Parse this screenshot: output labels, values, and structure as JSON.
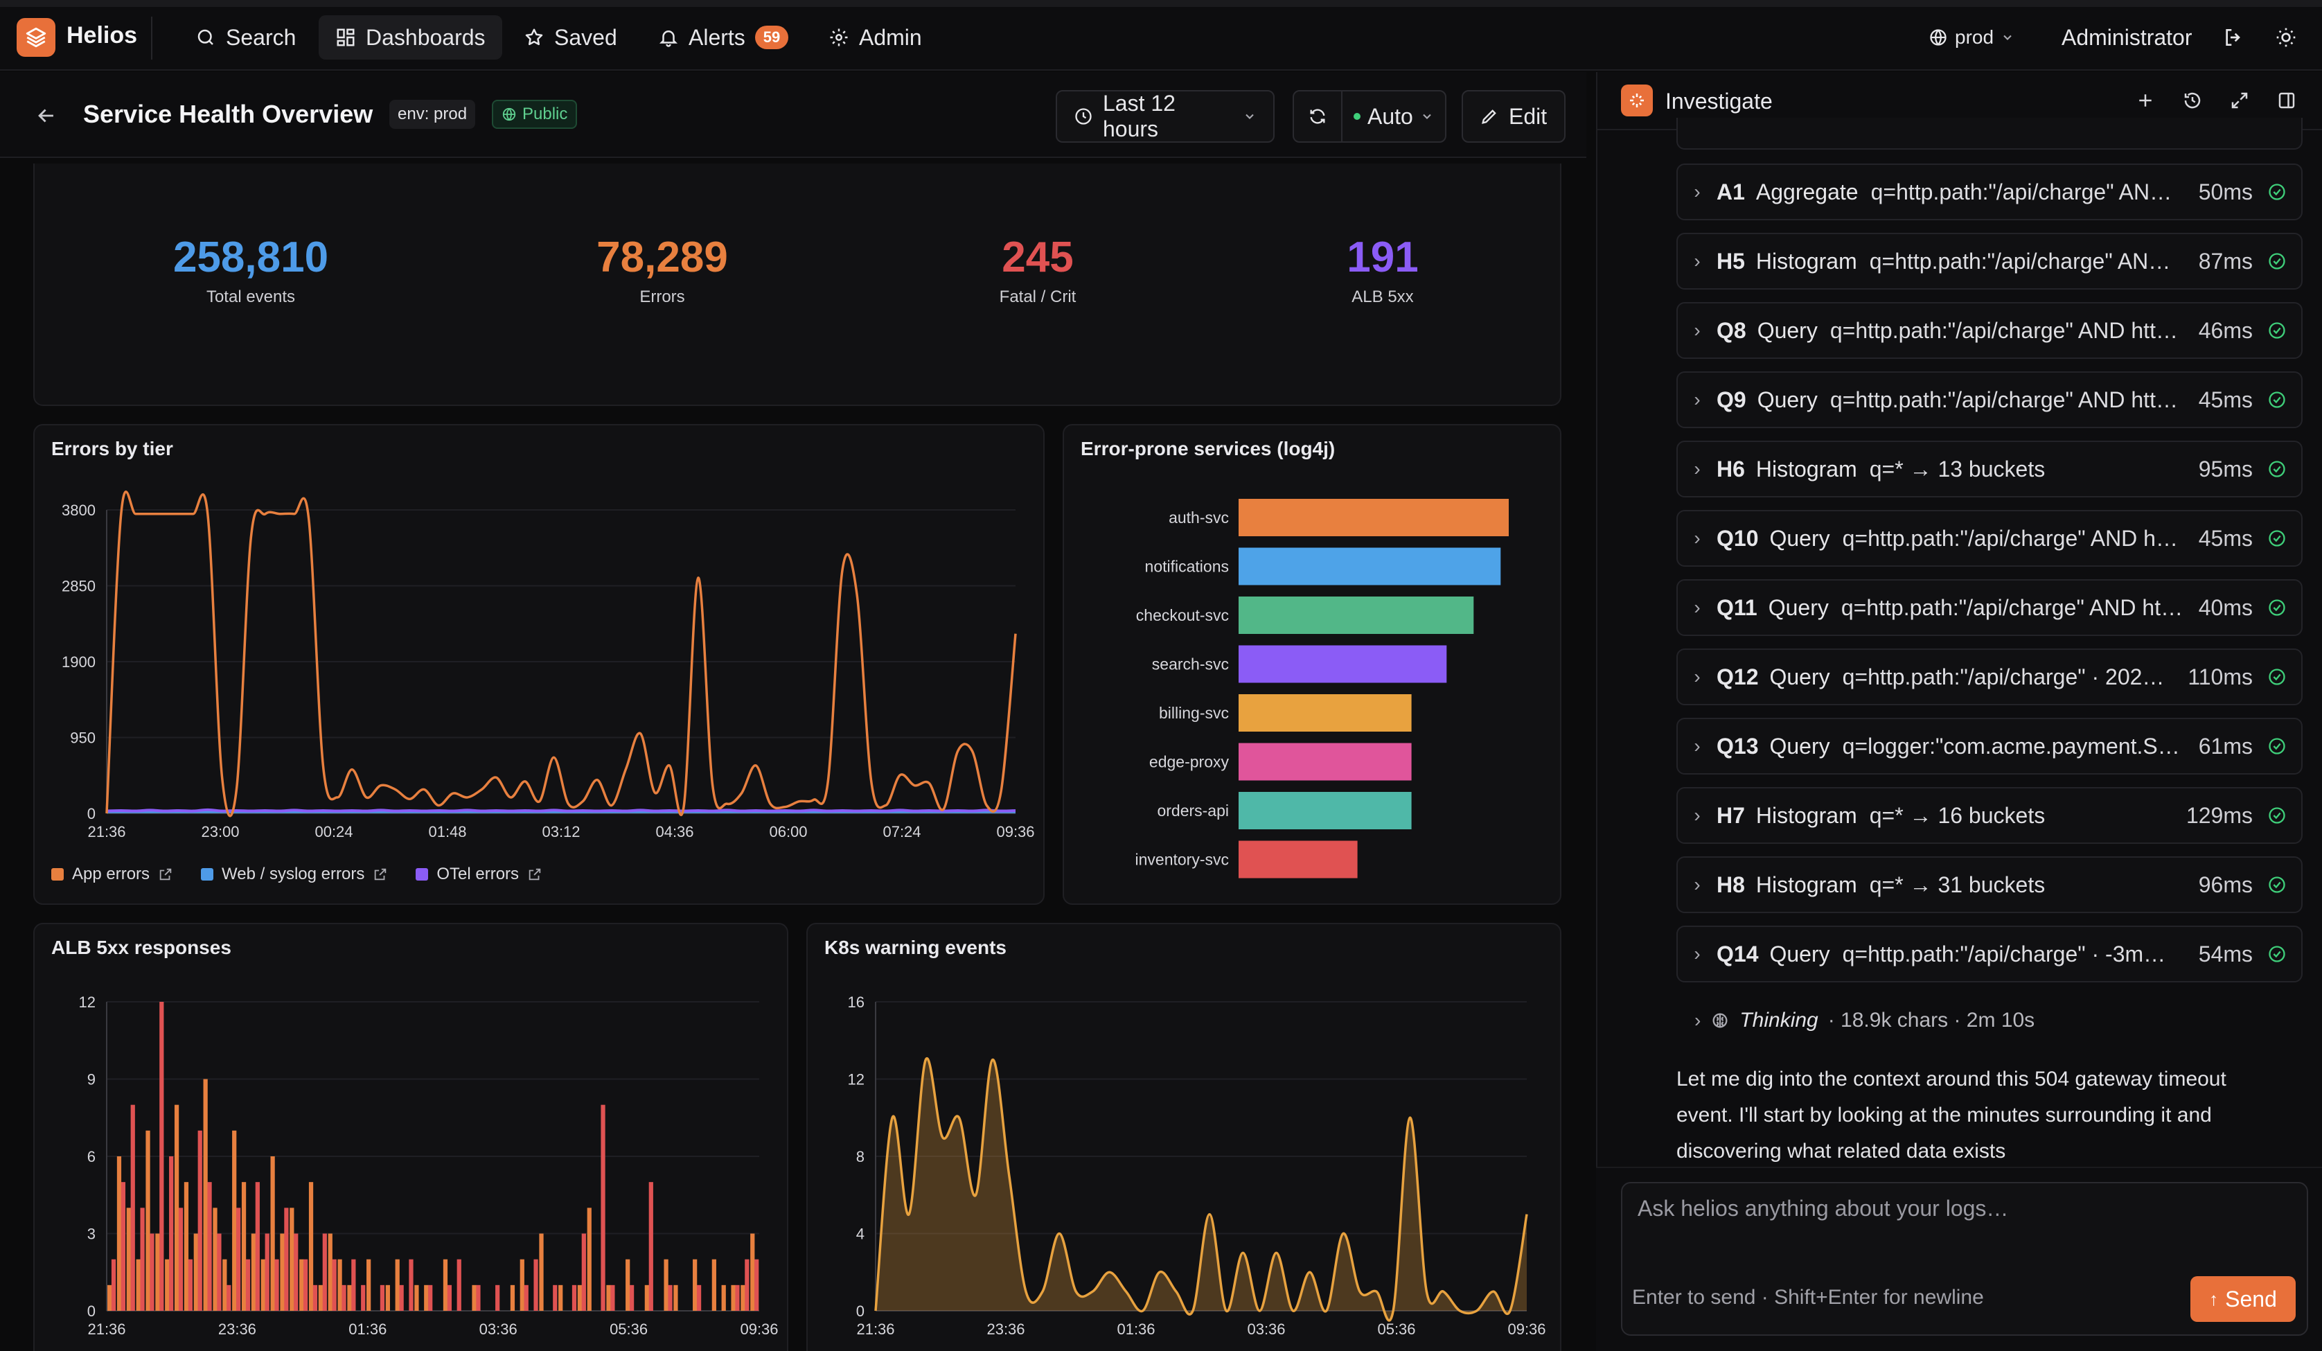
{
  "nav": {
    "brand": "Helios",
    "items": [
      {
        "label": "Search"
      },
      {
        "label": "Dashboards"
      },
      {
        "label": "Saved"
      },
      {
        "label": "Alerts",
        "badge": "59"
      },
      {
        "label": "Admin"
      }
    ],
    "env": "prod",
    "user": "Administrator"
  },
  "header": {
    "title": "Service Health Overview",
    "env_tag": "env: prod",
    "visibility": "Public",
    "time_range": "Last 12 hours",
    "refresh": "Auto",
    "edit": "Edit"
  },
  "stats": [
    {
      "value": "258,810",
      "label": "Total events",
      "color": "#4e9be8"
    },
    {
      "value": "78,289",
      "label": "Errors",
      "color": "#e8803f"
    },
    {
      "value": "245",
      "label": "Fatal / Crit",
      "color": "#e05252"
    },
    {
      "value": "191",
      "label": "ALB 5xx",
      "color": "#8b5cf6"
    }
  ],
  "panels": {
    "errors_by_tier": "Errors by tier",
    "error_prone": "Error-prone services (log4j)",
    "alb": "ALB 5xx responses",
    "k8s": "K8s warning events"
  },
  "legend": [
    {
      "label": "App errors",
      "color": "#e8803f"
    },
    {
      "label": "Web / syslog errors",
      "color": "#4e9be8"
    },
    {
      "label": "OTel errors",
      "color": "#8b5cf6"
    }
  ],
  "chart_data": [
    {
      "type": "line",
      "title": "Errors by tier",
      "x_ticks": [
        "21:36",
        "23:00",
        "00:24",
        "01:48",
        "03:12",
        "04:36",
        "06:00",
        "07:24",
        "09:36"
      ],
      "y_ticks": [
        "0",
        "950",
        "1900",
        "2850",
        "3800"
      ],
      "ylim": [
        0,
        3800
      ],
      "series": [
        {
          "name": "App errors",
          "color": "#e8803f",
          "values": [
            0,
            3750,
            3750,
            3750,
            3750,
            3750,
            3750,
            3750,
            450,
            300,
            3450,
            3750,
            3750,
            3750,
            3700,
            600,
            200,
            550,
            200,
            350,
            300,
            180,
            300,
            100,
            250,
            200,
            300,
            450,
            200,
            400,
            150,
            700,
            120,
            150,
            420,
            100,
            560,
            1000,
            260,
            600,
            80,
            2950,
            350,
            120,
            250,
            600,
            120,
            80,
            150,
            170,
            400,
            3050,
            2750,
            400,
            100,
            480,
            350,
            380,
            50,
            780,
            780,
            100,
            280,
            2250
          ]
        },
        {
          "name": "Web / syslog errors",
          "color": "#4e9be8",
          "values": [
            20,
            20,
            20,
            20,
            20,
            20,
            20,
            20,
            20,
            20,
            20,
            20,
            20,
            20,
            20,
            20,
            20,
            20,
            20,
            20,
            20,
            20,
            20,
            20,
            20,
            20,
            20,
            20,
            20,
            20,
            20,
            20,
            20,
            20,
            20,
            20,
            20,
            20,
            20,
            20,
            20,
            20,
            20,
            20,
            20,
            20,
            20,
            20,
            20,
            20,
            20,
            20,
            20,
            20,
            20,
            20,
            20,
            20,
            20,
            20,
            20,
            20,
            20,
            20
          ]
        },
        {
          "name": "OTel errors",
          "color": "#8b5cf6",
          "values": [
            30,
            35,
            30,
            40,
            30,
            35,
            30,
            45,
            30,
            35,
            30,
            35,
            30,
            40,
            30,
            35,
            30,
            35,
            30,
            40,
            30,
            35,
            30,
            35,
            30,
            40,
            30,
            35,
            30,
            35,
            30,
            40,
            30,
            35,
            30,
            35,
            30,
            40,
            30,
            35,
            30,
            35,
            30,
            40,
            30,
            35,
            30,
            35,
            30,
            40,
            30,
            35,
            30,
            35,
            30,
            40,
            30,
            35,
            30,
            35,
            30,
            40,
            30,
            35
          ]
        }
      ]
    },
    {
      "type": "bar",
      "title": "Error-prone services (log4j)",
      "categories": [
        "auth-svc",
        "notifications",
        "checkout-svc",
        "search-svc",
        "billing-svc",
        "edge-proxy",
        "orders-api",
        "inventory-svc"
      ],
      "values": [
        100,
        97,
        87,
        77,
        64,
        64,
        64,
        44
      ],
      "colors": [
        "#e8803f",
        "#4ea3e8",
        "#52b788",
        "#8b5cf6",
        "#e8a23f",
        "#e0559b",
        "#4fb8a8",
        "#e05252"
      ]
    },
    {
      "type": "bar",
      "title": "ALB 5xx responses",
      "x_ticks": [
        "21:36",
        "23:36",
        "01:36",
        "03:36",
        "05:36",
        "09:36"
      ],
      "y_ticks": [
        "0",
        "3",
        "6",
        "9",
        "12"
      ],
      "ylim": [
        0,
        12
      ],
      "series": [
        {
          "name": "orange",
          "color": "#e8803f",
          "values": [
            1,
            6,
            4,
            2,
            7,
            3,
            2,
            8,
            5,
            3,
            9,
            4,
            2,
            7,
            5,
            3,
            2,
            6,
            3,
            4,
            2,
            5,
            1,
            3,
            2,
            1,
            0,
            2,
            0,
            1,
            2,
            0,
            1,
            1,
            0,
            2,
            0,
            0,
            1,
            0,
            0,
            0,
            1,
            2,
            0,
            3,
            0,
            1,
            0,
            1,
            4,
            0,
            1,
            0,
            2,
            0,
            1,
            0,
            2,
            1,
            0,
            2,
            0,
            2,
            1,
            1,
            1,
            3
          ]
        },
        {
          "name": "red",
          "color": "#e05252",
          "values": [
            2,
            5,
            8,
            4,
            3,
            12,
            6,
            4,
            2,
            7,
            5,
            3,
            1,
            4,
            2,
            5,
            3,
            2,
            4,
            3,
            2,
            1,
            3,
            2,
            1,
            2,
            1,
            0,
            1,
            0,
            1,
            2,
            0,
            1,
            0,
            1,
            2,
            0,
            1,
            0,
            1,
            0,
            0,
            1,
            2,
            0,
            1,
            0,
            1,
            3,
            0,
            8,
            1,
            0,
            1,
            0,
            5,
            0,
            1,
            0,
            0,
            1,
            0,
            0,
            0,
            1,
            2,
            2
          ]
        }
      ]
    },
    {
      "type": "area",
      "title": "K8s warning events",
      "x_ticks": [
        "21:36",
        "23:36",
        "01:36",
        "03:36",
        "05:36",
        "09:36"
      ],
      "y_ticks": [
        "0",
        "4",
        "8",
        "12",
        "16"
      ],
      "ylim": [
        0,
        16
      ],
      "series": [
        {
          "name": "K8s warnings",
          "color": "#e8a23f",
          "values": [
            0,
            10,
            5,
            13,
            9,
            10,
            6,
            13,
            7,
            1,
            1,
            4,
            1,
            1,
            2,
            1,
            0,
            2,
            1,
            0,
            5,
            0,
            3,
            0,
            3,
            0,
            2,
            0,
            4,
            1,
            1,
            0,
            10,
            1,
            1,
            0,
            0,
            1,
            0,
            5
          ]
        }
      ]
    }
  ],
  "investigate": {
    "title": "Investigate",
    "steps": [
      {
        "id": "A1",
        "type": "Aggregate",
        "q": "q=http.path:\"/api/charge\" AN…",
        "ms": "50ms"
      },
      {
        "id": "H5",
        "type": "Histogram",
        "q": "q=http.path:\"/api/charge\" AN…",
        "ms": "87ms"
      },
      {
        "id": "Q8",
        "type": "Query",
        "q": "q=http.path:\"/api/charge\" AND htt…",
        "ms": "46ms"
      },
      {
        "id": "Q9",
        "type": "Query",
        "q": "q=http.path:\"/api/charge\" AND htt…",
        "ms": "45ms"
      },
      {
        "id": "H6",
        "type": "Histogram",
        "q": "q=* → 13 buckets",
        "ms": "95ms"
      },
      {
        "id": "Q10",
        "type": "Query",
        "q": "q=http.path:\"/api/charge\" AND h…",
        "ms": "45ms"
      },
      {
        "id": "Q11",
        "type": "Query",
        "q": "q=http.path:\"/api/charge\" AND ht…",
        "ms": "40ms"
      },
      {
        "id": "Q12",
        "type": "Query",
        "q": "q=http.path:\"/api/charge\" · 202…",
        "ms": "110ms"
      },
      {
        "id": "Q13",
        "type": "Query",
        "q": "q=logger:\"com.acme.payment.S…",
        "ms": "61ms"
      },
      {
        "id": "H7",
        "type": "Histogram",
        "q": "q=* → 16 buckets",
        "ms": "129ms"
      },
      {
        "id": "H8",
        "type": "Histogram",
        "q": "q=* → 31 buckets",
        "ms": "96ms"
      },
      {
        "id": "Q14",
        "type": "Query",
        "q": "q=http.path:\"/api/charge\" · -3m…",
        "ms": "54ms"
      }
    ],
    "thinking_label": "Thinking",
    "thinking_meta": "· 18.9k chars · 2m 10s",
    "message_lines": [
      "Let me dig into the context around this 504 gateway timeout",
      "event. I'll start by looking at the minutes surrounding it and",
      "discovering what related data exists"
    ],
    "input_placeholder": "Ask helios anything about your logs…",
    "hint": "Enter to send · Shift+Enter for newline",
    "send": "Send"
  }
}
